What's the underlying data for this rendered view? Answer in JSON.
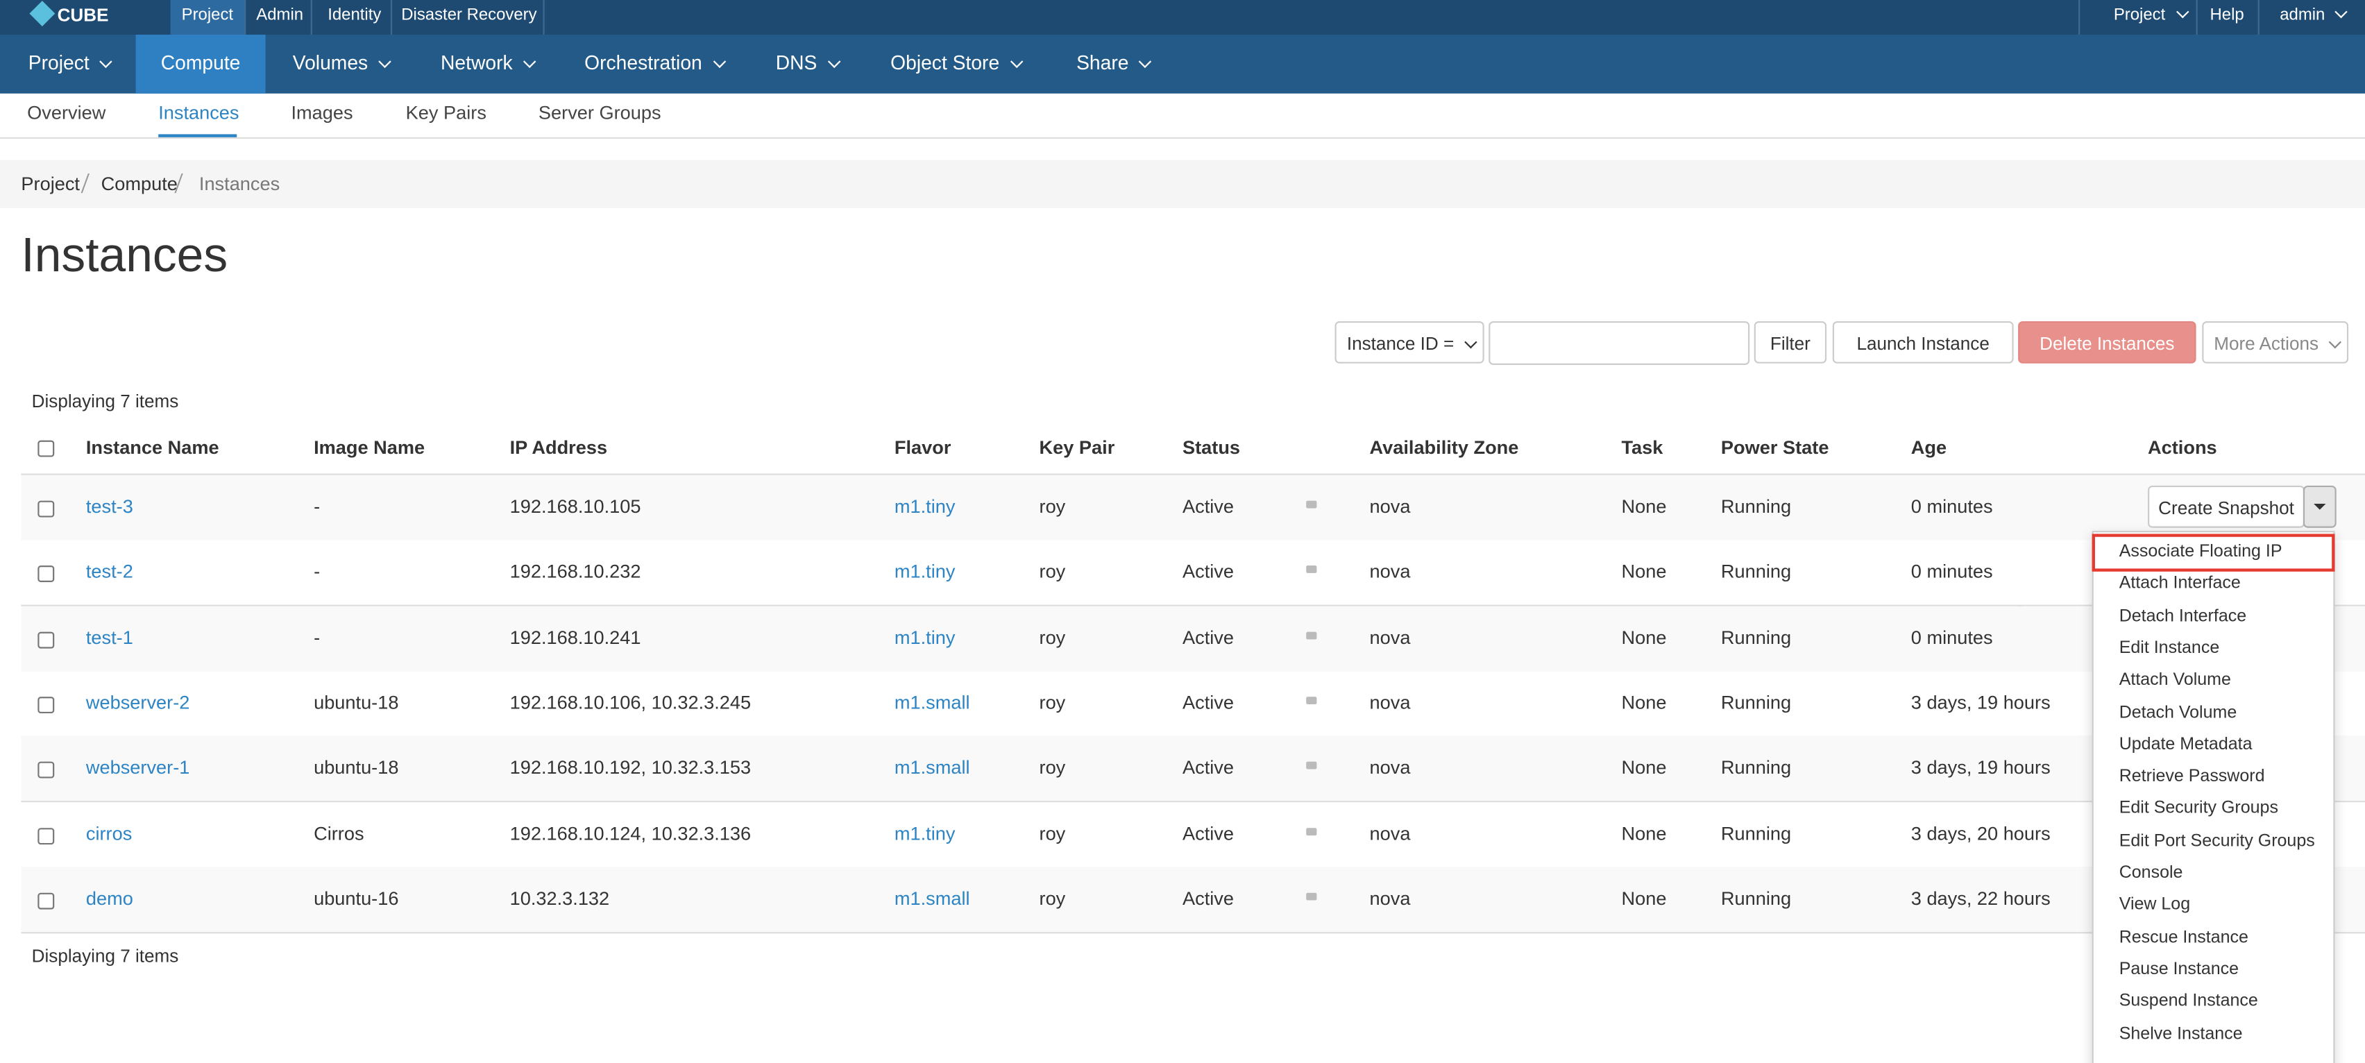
{
  "brand": "CUBE",
  "top_nav": {
    "left": [
      "Project",
      "Admin",
      "Identity",
      "Disaster Recovery"
    ],
    "right": [
      "Project",
      "Help",
      "admin"
    ]
  },
  "main_nav": [
    "Project",
    "Compute",
    "Volumes",
    "Network",
    "Orchestration",
    "DNS",
    "Object Store",
    "Share"
  ],
  "sub_nav": [
    "Overview",
    "Instances",
    "Images",
    "Key Pairs",
    "Server Groups"
  ],
  "breadcrumb": [
    "Project",
    "Compute",
    "Instances"
  ],
  "page_title": "Instances",
  "toolbar": {
    "filter_field": "Instance ID =",
    "filter_button": "Filter",
    "launch": "Launch Instance",
    "delete": "Delete Instances",
    "more": "More Actions"
  },
  "count_text": "Displaying 7 items",
  "table": {
    "headers": [
      "Instance Name",
      "Image Name",
      "IP Address",
      "Flavor",
      "Key Pair",
      "Status",
      "Availability Zone",
      "Task",
      "Power State",
      "Age",
      "Actions"
    ],
    "rows": [
      [
        "test-3",
        "-",
        "192.168.10.105",
        "m1.tiny",
        "roy",
        "Active",
        "nova",
        "None",
        "Running",
        "0 minutes"
      ],
      [
        "test-2",
        "-",
        "192.168.10.232",
        "m1.tiny",
        "roy",
        "Active",
        "nova",
        "None",
        "Running",
        "0 minutes"
      ],
      [
        "test-1",
        "-",
        "192.168.10.241",
        "m1.tiny",
        "roy",
        "Active",
        "nova",
        "None",
        "Running",
        "0 minutes"
      ],
      [
        "webserver-2",
        "ubuntu-18",
        "192.168.10.106, 10.32.3.245",
        "m1.small",
        "roy",
        "Active",
        "nova",
        "None",
        "Running",
        "3 days, 19 hours"
      ],
      [
        "webserver-1",
        "ubuntu-18",
        "192.168.10.192, 10.32.3.153",
        "m1.small",
        "roy",
        "Active",
        "nova",
        "None",
        "Running",
        "3 days, 19 hours"
      ],
      [
        "cirros",
        "Cirros",
        "192.168.10.124, 10.32.3.136",
        "m1.tiny",
        "roy",
        "Active",
        "nova",
        "None",
        "Running",
        "3 days, 20 hours"
      ],
      [
        "demo",
        "ubuntu-16",
        "10.32.3.132",
        "m1.small",
        "roy",
        "Active",
        "nova",
        "None",
        "Running",
        "3 days, 22 hours"
      ]
    ]
  },
  "row_action": "Create Snapshot",
  "action_menu": [
    "Associate Floating IP",
    "Attach Interface",
    "Detach Interface",
    "Edit Instance",
    "Attach Volume",
    "Detach Volume",
    "Update Metadata",
    "Retrieve Password",
    "Edit Security Groups",
    "Edit Port Security Groups",
    "Console",
    "View Log",
    "Rescue Instance",
    "Pause Instance",
    "Suspend Instance",
    "Shelve Instance"
  ]
}
